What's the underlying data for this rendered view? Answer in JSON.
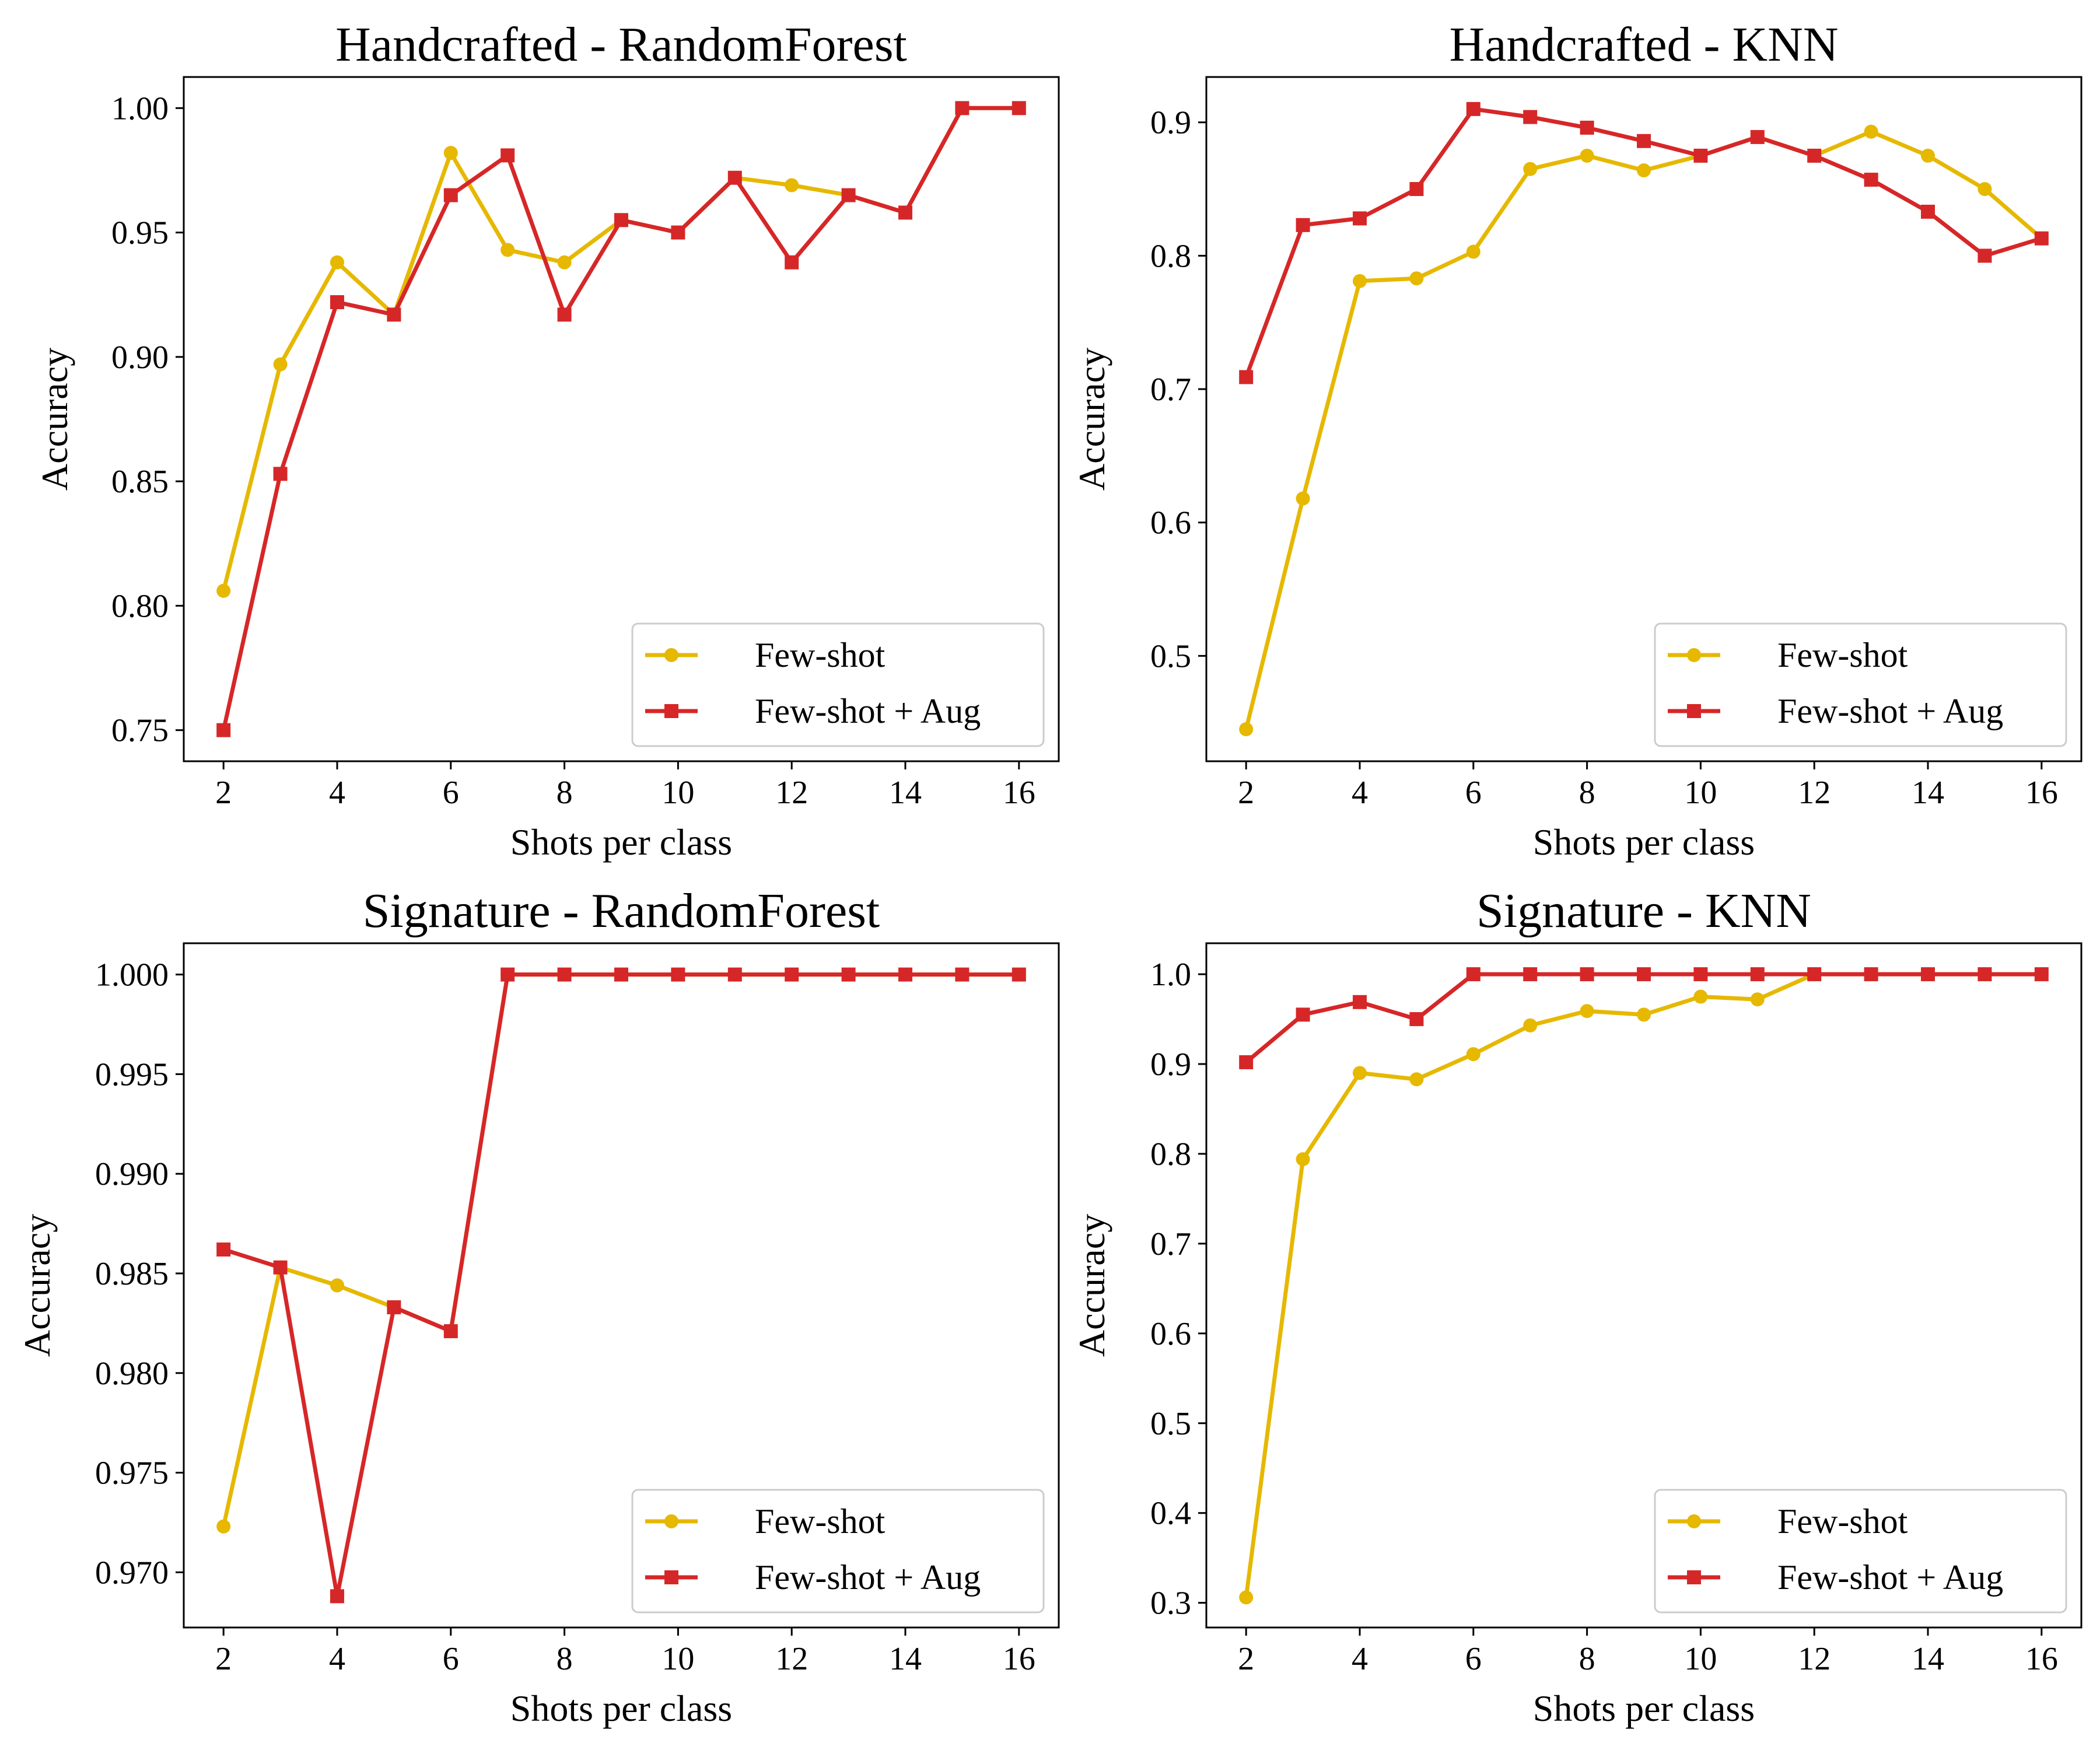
{
  "colors": {
    "few_shot": "#E6B800",
    "few_shot_aug": "#D62728"
  },
  "chart_data": [
    {
      "type": "line",
      "title": "Handcrafted - RandomForest",
      "xlabel": "Shots per class",
      "ylabel": "Accuracy",
      "x": [
        2,
        3,
        4,
        5,
        6,
        7,
        8,
        9,
        10,
        11,
        12,
        13,
        14,
        15,
        16
      ],
      "xticks": [
        2,
        4,
        6,
        8,
        10,
        12,
        14,
        16
      ],
      "yticks": [
        "0.75",
        "0.80",
        "0.85",
        "0.90",
        "0.95",
        "1.00"
      ],
      "ylim": [
        0.7375,
        1.0125
      ],
      "xlim": [
        1.3,
        16.7
      ],
      "legend_position": "lower-right",
      "series": [
        {
          "name": "Few-shot",
          "marker": "circle",
          "color": "#E6B800",
          "values": [
            0.806,
            0.897,
            0.938,
            0.917,
            0.982,
            0.943,
            0.938,
            0.955,
            0.95,
            0.972,
            0.969,
            0.965,
            0.958,
            1.0,
            1.0
          ]
        },
        {
          "name": "Few-shot + Aug",
          "marker": "square",
          "color": "#D62728",
          "values": [
            0.75,
            0.853,
            0.922,
            0.917,
            0.965,
            0.981,
            0.917,
            0.955,
            0.95,
            0.972,
            0.938,
            0.965,
            0.958,
            1.0,
            1.0
          ]
        }
      ]
    },
    {
      "type": "line",
      "title": "Handcrafted - KNN",
      "xlabel": "Shots per class",
      "ylabel": "Accuracy",
      "x": [
        2,
        3,
        4,
        5,
        6,
        7,
        8,
        9,
        10,
        11,
        12,
        13,
        14,
        15,
        16
      ],
      "xticks": [
        2,
        4,
        6,
        8,
        10,
        12,
        14,
        16
      ],
      "yticks": [
        "0.5",
        "0.6",
        "0.7",
        "0.8",
        "0.9"
      ],
      "ylim": [
        0.421,
        0.934
      ],
      "xlim": [
        1.3,
        16.7
      ],
      "legend_position": "lower-right",
      "series": [
        {
          "name": "Few-shot",
          "marker": "circle",
          "color": "#E6B800",
          "values": [
            0.445,
            0.618,
            0.781,
            0.783,
            0.803,
            0.865,
            0.875,
            0.864,
            0.875,
            0.889,
            0.875,
            0.893,
            0.875,
            0.85,
            0.813
          ]
        },
        {
          "name": "Few-shot + Aug",
          "marker": "square",
          "color": "#D62728",
          "values": [
            0.709,
            0.823,
            0.828,
            0.85,
            0.91,
            0.904,
            0.896,
            0.886,
            0.875,
            0.889,
            0.875,
            0.857,
            0.833,
            0.8,
            0.813
          ]
        }
      ]
    },
    {
      "type": "line",
      "title": "Signature - RandomForest",
      "xlabel": "Shots per class",
      "ylabel": "Accuracy",
      "x": [
        2,
        3,
        4,
        5,
        6,
        7,
        8,
        9,
        10,
        11,
        12,
        13,
        14,
        15,
        16
      ],
      "xticks": [
        2,
        4,
        6,
        8,
        10,
        12,
        14,
        16
      ],
      "yticks": [
        "0.970",
        "0.975",
        "0.980",
        "0.985",
        "0.990",
        "0.995",
        "1.000"
      ],
      "ylim": [
        0.96723,
        1.00157
      ],
      "xlim": [
        1.3,
        16.7
      ],
      "legend_position": "lower-right",
      "series": [
        {
          "name": "Few-shot",
          "marker": "circle",
          "color": "#E6B800",
          "values": [
            0.9723,
            0.9853,
            0.9844,
            0.9833,
            0.9821,
            1.0,
            1.0,
            1.0,
            1.0,
            1.0,
            1.0,
            1.0,
            1.0,
            1.0,
            1.0
          ]
        },
        {
          "name": "Few-shot + Aug",
          "marker": "square",
          "color": "#D62728",
          "values": [
            0.9862,
            0.9853,
            0.9688,
            0.9833,
            0.9821,
            1.0,
            1.0,
            1.0,
            1.0,
            1.0,
            1.0,
            1.0,
            1.0,
            1.0,
            1.0
          ]
        }
      ]
    },
    {
      "type": "line",
      "title": "Signature - KNN",
      "xlabel": "Shots per class",
      "ylabel": "Accuracy",
      "x": [
        2,
        3,
        4,
        5,
        6,
        7,
        8,
        9,
        10,
        11,
        12,
        13,
        14,
        15,
        16
      ],
      "xticks": [
        2,
        4,
        6,
        8,
        10,
        12,
        14,
        16
      ],
      "yticks": [
        "0.3",
        "0.4",
        "0.5",
        "0.6",
        "0.7",
        "0.8",
        "0.9",
        "1.0"
      ],
      "ylim": [
        0.2725,
        1.0345
      ],
      "xlim": [
        1.3,
        16.7
      ],
      "legend_position": "lower-right",
      "series": [
        {
          "name": "Few-shot",
          "marker": "circle",
          "color": "#E6B800",
          "values": [
            0.306,
            0.794,
            0.89,
            0.883,
            0.911,
            0.943,
            0.959,
            0.955,
            0.975,
            0.972,
            1.0,
            1.0,
            1.0,
            1.0,
            1.0
          ]
        },
        {
          "name": "Few-shot + Aug",
          "marker": "square",
          "color": "#D62728",
          "values": [
            0.902,
            0.955,
            0.969,
            0.95,
            1.0,
            1.0,
            1.0,
            1.0,
            1.0,
            1.0,
            1.0,
            1.0,
            1.0,
            1.0,
            1.0
          ]
        }
      ]
    }
  ]
}
